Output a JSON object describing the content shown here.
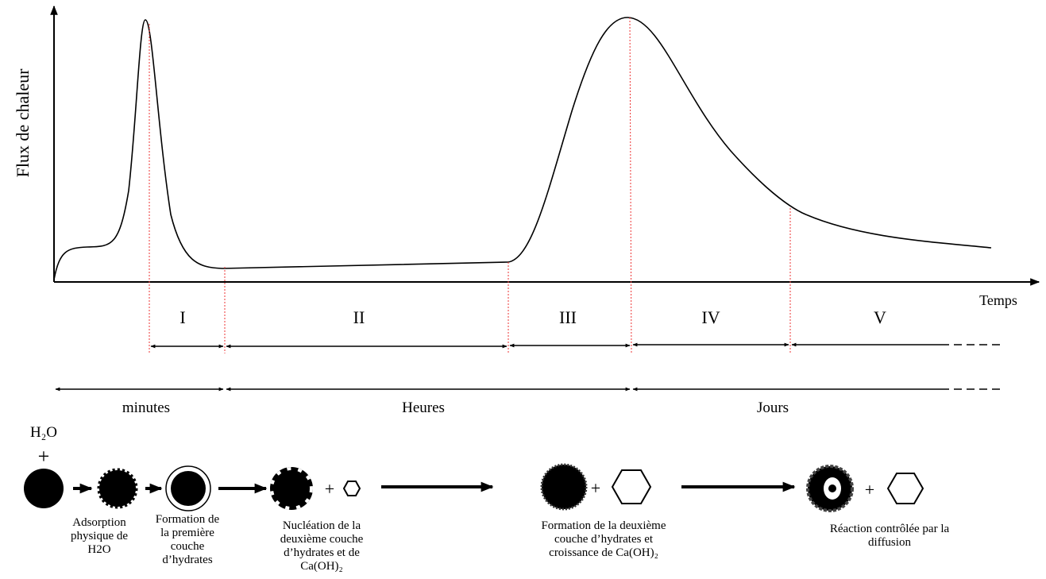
{
  "axes": {
    "y_label": "Flux de chaleur",
    "x_label": "Temps"
  },
  "periods": [
    "I",
    "II",
    "III",
    "IV",
    "V"
  ],
  "time_scales": [
    "minutes",
    "Heures",
    "Jours"
  ],
  "reactants": {
    "water": "H₂O",
    "plus": "+"
  },
  "captions": [
    [
      "Adsorption",
      "physique de",
      "H2O"
    ],
    [
      "Formation de",
      "la première",
      "couche",
      "d’hydrates"
    ],
    [
      "Nucléation de la",
      "deuxième couche",
      "d’hydrates et de",
      "Ca(OH)₂"
    ],
    [
      "Formation de la deuxième",
      "couche d’hydrates et",
      "croissance de Ca(OH)₂"
    ],
    [
      "Réaction contrôlée par la",
      "diffusion"
    ]
  ]
}
